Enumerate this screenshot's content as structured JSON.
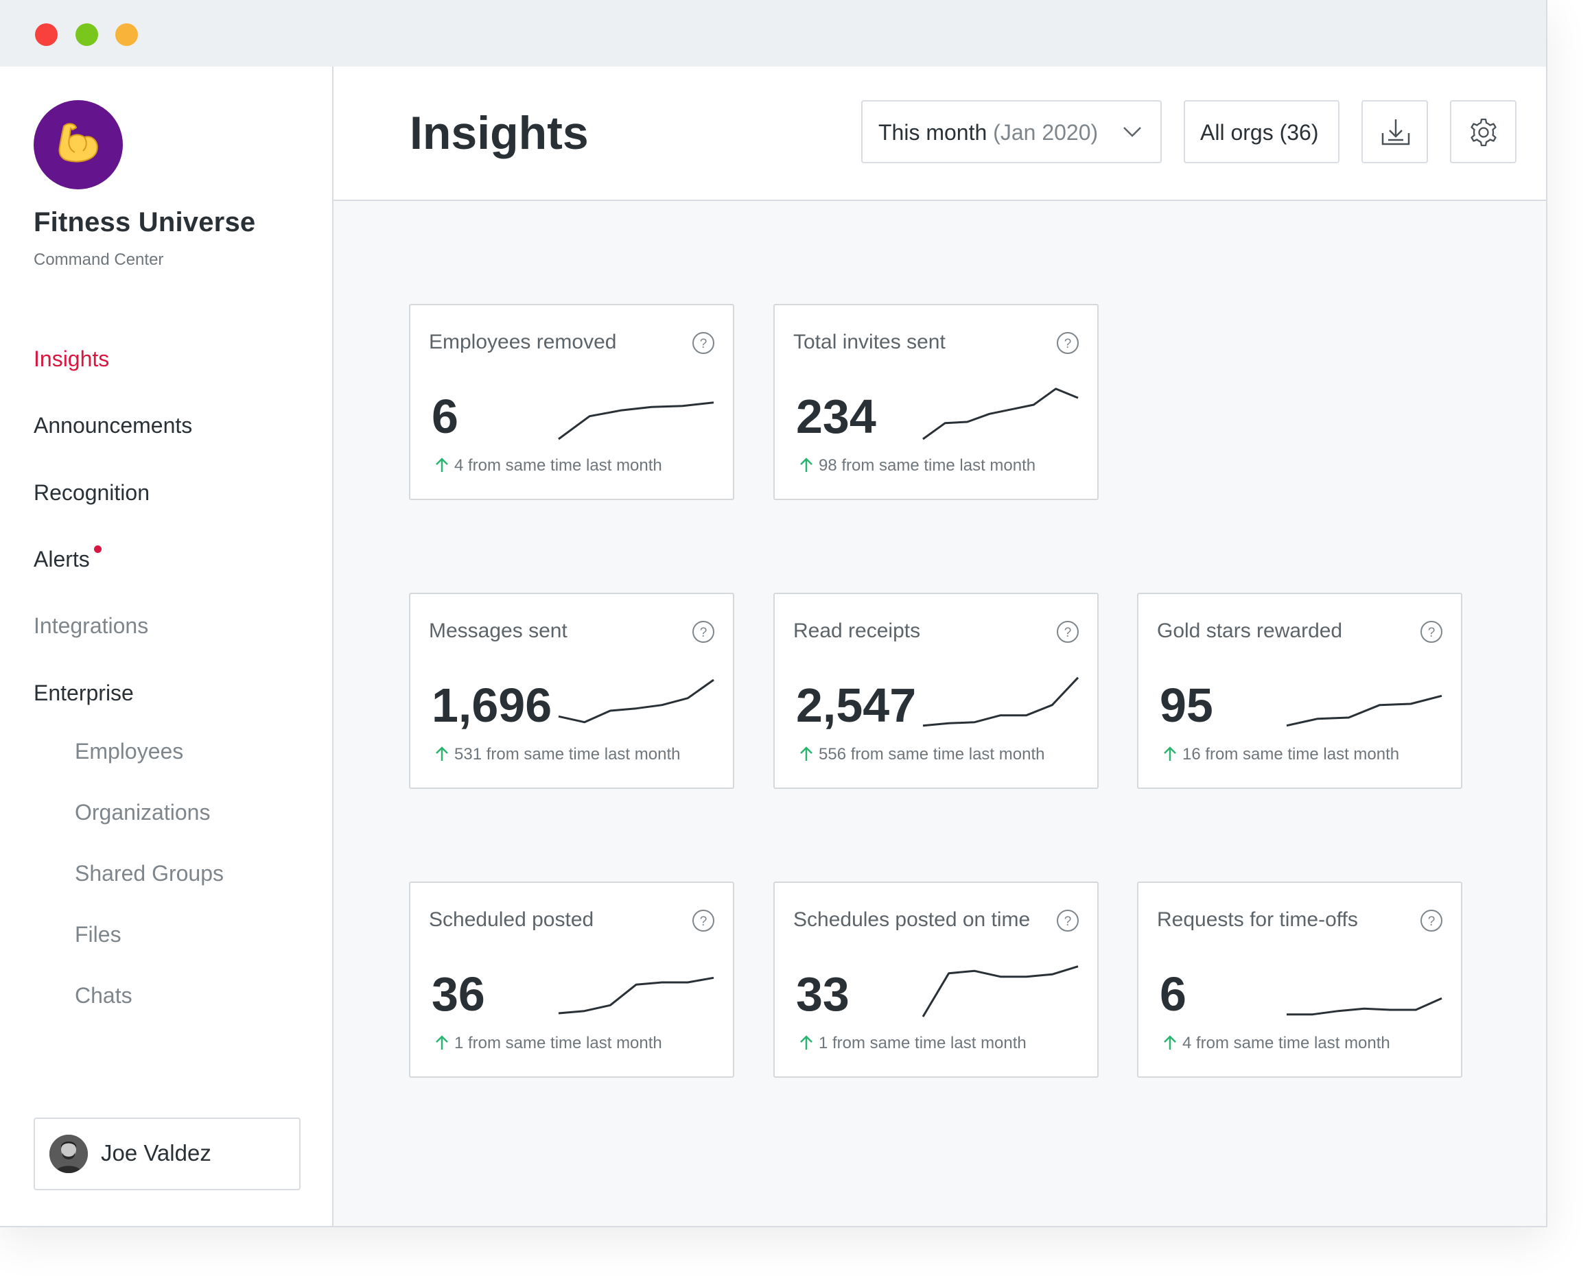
{
  "brand": {
    "name": "Fitness Universe",
    "subtitle": "Command Center"
  },
  "nav": {
    "items": [
      {
        "label": "Insights",
        "state": "active"
      },
      {
        "label": "Announcements",
        "state": "normal"
      },
      {
        "label": "Recognition",
        "state": "normal"
      },
      {
        "label": "Alerts",
        "state": "normal",
        "badge": true
      },
      {
        "label": "Integrations",
        "state": "muted"
      },
      {
        "label": "Enterprise",
        "state": "normal"
      }
    ],
    "subitems": [
      {
        "label": "Employees"
      },
      {
        "label": "Organizations"
      },
      {
        "label": "Shared Groups"
      },
      {
        "label": "Files"
      },
      {
        "label": "Chats"
      }
    ]
  },
  "user": {
    "name": "Joe Valdez"
  },
  "header": {
    "title": "Insights",
    "period_label": "This month",
    "period_value": "(Jan 2020)",
    "orgs_label": "All orgs (36)"
  },
  "colors": {
    "accent": "#d8163f",
    "brand_purple": "#64148c",
    "positive": "#2ab36f"
  },
  "cards": [
    {
      "title": "Employees removed",
      "value": "6",
      "delta": "4 from same time last month",
      "trend": [
        0,
        20,
        25,
        28,
        29,
        32
      ]
    },
    {
      "title": "Total invites sent",
      "value": "234",
      "delta": "98 from same time last month",
      "trend": [
        0,
        14,
        15,
        22,
        26,
        30,
        44,
        36
      ]
    },
    {
      "title": "Messages sent",
      "value": "1,696",
      "delta": "531 from same time last month",
      "trend": [
        10,
        5,
        15,
        17,
        20,
        26,
        42
      ]
    },
    {
      "title": "Read receipts",
      "value": "2,547",
      "delta": "556 from same time last month",
      "trend": [
        2,
        4,
        5,
        11,
        11,
        20,
        44
      ]
    },
    {
      "title": "Gold stars rewarded",
      "value": "95",
      "delta": "16 from same time last month",
      "trend": [
        2,
        8,
        9,
        20,
        21,
        28
      ]
    },
    {
      "title": "Scheduled posted",
      "value": "36",
      "delta": "1 from same time last month",
      "trend": [
        3,
        5,
        10,
        28,
        30,
        30,
        34
      ]
    },
    {
      "title": "Schedules posted on time",
      "value": "33",
      "delta": "1 from same time last month",
      "trend": [
        0,
        38,
        40,
        35,
        35,
        37,
        44
      ]
    },
    {
      "title": "Requests for time-offs",
      "value": "6",
      "delta": "4 from same time last month",
      "trend": [
        2,
        2,
        5,
        7,
        6,
        6,
        16
      ]
    }
  ]
}
